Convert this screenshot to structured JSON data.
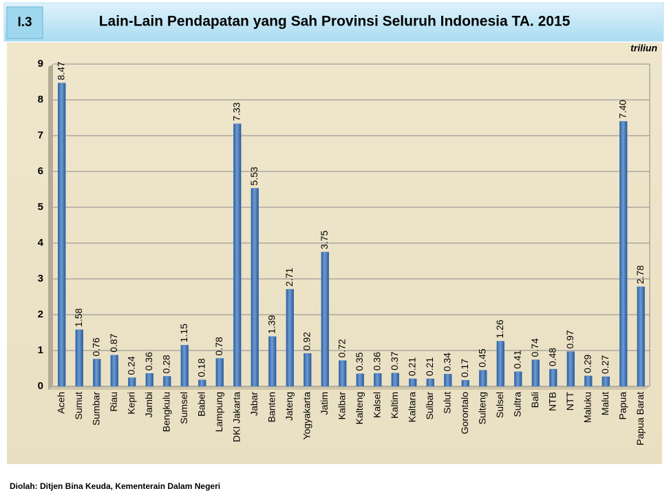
{
  "badge": "I.3",
  "chart_data": {
    "type": "bar",
    "title": "Lain-Lain Pendapatan yang Sah Provinsi Seluruh Indonesia TA. 2015",
    "unit_label": "triliun",
    "categories": [
      "Aceh",
      "Sumut",
      "Sumbar",
      "Riau",
      "Kepri",
      "Jambi",
      "Bengkulu",
      "Sumsel",
      "Babel",
      "Lampung",
      "DKI Jakarta",
      "Jabar",
      "Banten",
      "Jateng",
      "Yogyakarta",
      "Jatim",
      "Kalbar",
      "Kalteng",
      "Kalsel",
      "Kaltim",
      "Kaltara",
      "Sulbar",
      "Sulut",
      "Gorontalo",
      "Sulteng",
      "Sulsel",
      "Sultra",
      "Bali",
      "NTB",
      "NTT",
      "Maluku",
      "Malut",
      "Papua",
      "Papua Barat"
    ],
    "values": [
      8.47,
      1.58,
      0.76,
      0.87,
      0.24,
      0.36,
      0.28,
      1.15,
      0.18,
      0.78,
      7.33,
      5.53,
      1.39,
      2.71,
      0.92,
      3.75,
      0.72,
      0.35,
      0.36,
      0.37,
      0.21,
      0.21,
      0.34,
      0.17,
      0.45,
      1.26,
      0.41,
      0.74,
      0.48,
      0.97,
      0.29,
      0.27,
      7.4,
      2.78
    ],
    "value_labels": [
      "8.47",
      "1.58",
      "0.76",
      "0.87",
      "0.24",
      "0.36",
      "0.28",
      "1.15",
      "0.18",
      "0.78",
      "7.33",
      "5.53",
      "1.39",
      "2.71",
      "0.92",
      "3.75",
      "0.72",
      "0.35",
      "0.36",
      "0.37",
      "0.21",
      "0.21",
      "0.34",
      "0.17",
      "0.45",
      "1.26",
      "0.41",
      "0.74",
      "0.48",
      "0.97",
      "0.29",
      "0.27",
      "7.40",
      "2.78"
    ],
    "color": "#4a7ebb",
    "ylim": [
      0,
      9
    ],
    "yticks": [
      0,
      1,
      2,
      3,
      4,
      5,
      6,
      7,
      8,
      9
    ],
    "grid": true
  },
  "source": "Diolah: Ditjen Bina Keuda, Kementerain Dalam Negeri"
}
